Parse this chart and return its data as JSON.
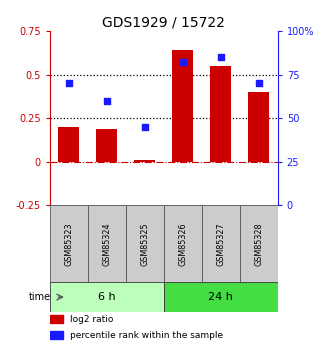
{
  "title": "GDS1929 / 15722",
  "samples": [
    "GSM85323",
    "GSM85324",
    "GSM85325",
    "GSM85326",
    "GSM85327",
    "GSM85328"
  ],
  "log2_ratio": [
    0.2,
    0.19,
    0.01,
    0.64,
    0.55,
    0.4
  ],
  "percentile_rank": [
    70,
    60,
    45,
    82,
    85,
    70
  ],
  "ylim_left": [
    -0.25,
    0.75
  ],
  "ylim_right": [
    0,
    100
  ],
  "yticks_left": [
    -0.25,
    0,
    0.25,
    0.5,
    0.75
  ],
  "yticks_right": [
    0,
    25,
    50,
    75,
    100
  ],
  "ytick_labels_left": [
    "-0.25",
    "0",
    "0.25",
    "0.5",
    "0.75"
  ],
  "ytick_labels_right": [
    "0",
    "25",
    "50",
    "75",
    "100%"
  ],
  "hlines_dotted": [
    0.25,
    0.5
  ],
  "hline_zero": 0,
  "bar_color": "#cc0000",
  "square_color": "#1a1aff",
  "group1_label": "6 h",
  "group2_label": "24 h",
  "group1_indices": [
    0,
    1,
    2
  ],
  "group2_indices": [
    3,
    4,
    5
  ],
  "group1_color": "#bbffbb",
  "group2_color": "#44dd44",
  "time_label": "time",
  "legend_bar_label": "log2 ratio",
  "legend_sq_label": "percentile rank within the sample",
  "bar_width": 0.55,
  "left_axis_color": "#cc0000",
  "right_axis_color": "#1a1aff",
  "n_samples": 6
}
